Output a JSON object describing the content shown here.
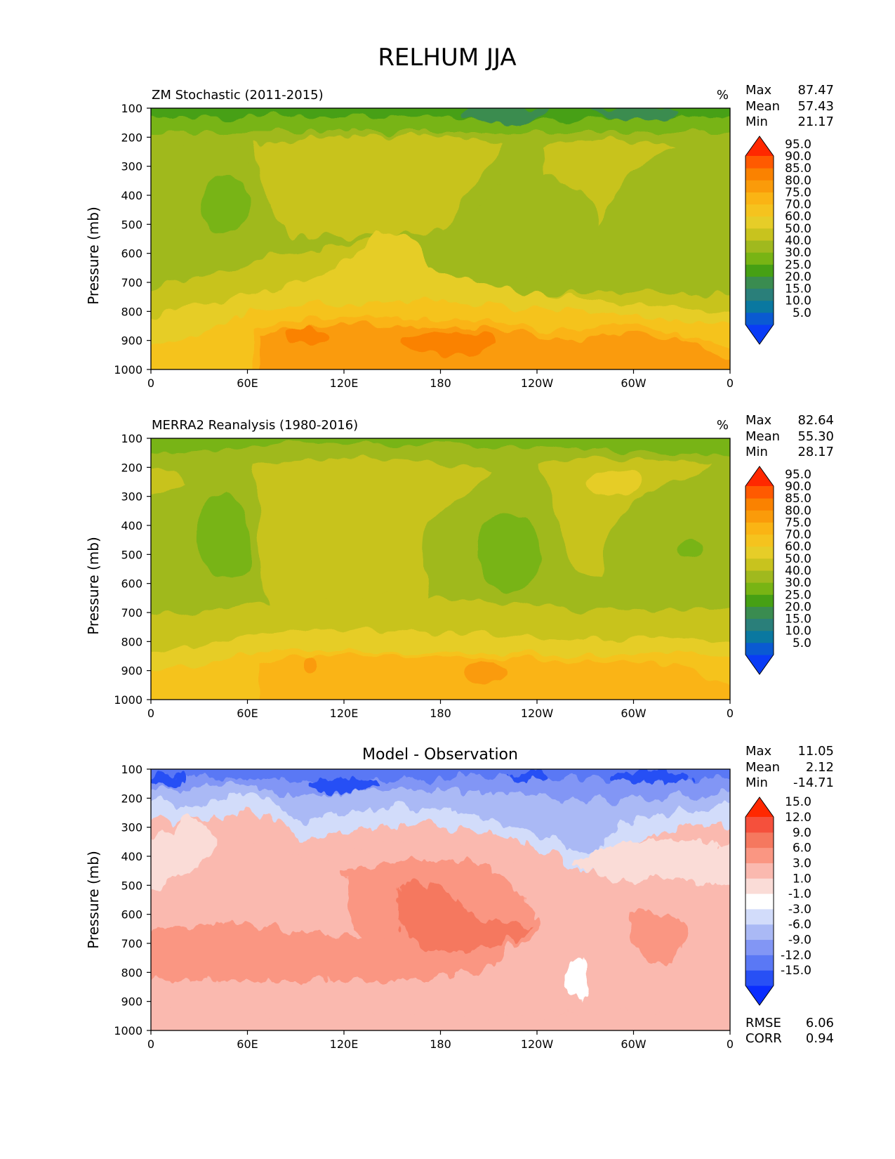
{
  "figure_title": "RELHUM JJA",
  "chart_data": [
    {
      "type": "contour",
      "title": "ZM Stochastic (2011-2015)",
      "units": "%",
      "ylabel": "Pressure (mb)",
      "xlabel": "",
      "x_ticks": [
        "0",
        "60E",
        "120E",
        "180",
        "120W",
        "60W",
        "0"
      ],
      "y_ticks": [
        "100",
        "200",
        "300",
        "400",
        "500",
        "600",
        "700",
        "800",
        "900",
        "1000"
      ],
      "ylim": [
        1000,
        100
      ],
      "stats": {
        "max_label": "Max",
        "max": "87.47",
        "mean_label": "Mean",
        "mean": "57.43",
        "min_label": "Min",
        "min": "21.17"
      },
      "levels": [
        "5.0",
        "10.0",
        "15.0",
        "20.0",
        "25.0",
        "30.0",
        "40.0",
        "50.0",
        "60.0",
        "70.0",
        "75.0",
        "80.0",
        "85.0",
        "90.0",
        "95.0"
      ],
      "colors": [
        "#0a3cf5",
        "#0a5ad2",
        "#0a78a0",
        "#2a7f7a",
        "#3a8c50",
        "#46a014",
        "#78b414",
        "#a0b91e",
        "#c8c31e",
        "#e6cd28",
        "#f5c31e",
        "#fab414",
        "#fa9b0a",
        "#fa8200",
        "#ff5a00",
        "#ff2800"
      ]
    },
    {
      "type": "contour",
      "title": "MERRA2 Reanalysis (1980-2016)",
      "units": "%",
      "ylabel": "Pressure (mb)",
      "xlabel": "",
      "x_ticks": [
        "0",
        "60E",
        "120E",
        "180",
        "120W",
        "60W",
        "0"
      ],
      "y_ticks": [
        "100",
        "200",
        "300",
        "400",
        "500",
        "600",
        "700",
        "800",
        "900",
        "1000"
      ],
      "ylim": [
        1000,
        100
      ],
      "stats": {
        "max_label": "Max",
        "max": "82.64",
        "mean_label": "Mean",
        "mean": "55.30",
        "min_label": "Min",
        "min": "28.17"
      },
      "levels": [
        "5.0",
        "10.0",
        "15.0",
        "20.0",
        "25.0",
        "30.0",
        "40.0",
        "50.0",
        "60.0",
        "70.0",
        "75.0",
        "80.0",
        "85.0",
        "90.0",
        "95.0"
      ],
      "colors": [
        "#0a3cf5",
        "#0a5ad2",
        "#0a78a0",
        "#2a7f7a",
        "#3a8c50",
        "#46a014",
        "#78b414",
        "#a0b91e",
        "#c8c31e",
        "#e6cd28",
        "#f5c31e",
        "#fab414",
        "#fa9b0a",
        "#fa8200",
        "#ff5a00",
        "#ff2800"
      ]
    },
    {
      "type": "contour",
      "title": "Model - Observation",
      "units": "",
      "ylabel": "Pressure (mb)",
      "xlabel": "",
      "x_ticks": [
        "0",
        "60E",
        "120E",
        "180",
        "120W",
        "60W",
        "0"
      ],
      "y_ticks": [
        "100",
        "200",
        "300",
        "400",
        "500",
        "600",
        "700",
        "800",
        "900",
        "1000"
      ],
      "ylim": [
        1000,
        100
      ],
      "stats": {
        "max_label": "Max",
        "max": "11.05",
        "mean_label": "Mean",
        "mean": "2.12",
        "min_label": "Min",
        "min": "-14.71"
      },
      "rmse_label": "RMSE",
      "rmse": "6.06",
      "corr_label": "CORR",
      "corr": "0.94",
      "levels": [
        "-15.0",
        "-12.0",
        "-9.0",
        "-6.0",
        "-3.0",
        "-1.0",
        "1.0",
        "3.0",
        "6.0",
        "9.0",
        "12.0",
        "15.0"
      ],
      "colors": [
        "#0a2dff",
        "#2850f5",
        "#5a78f5",
        "#8296f5",
        "#aab9f5",
        "#d2dcfa",
        "#ffffff",
        "#fadcd7",
        "#fab9af",
        "#fa9682",
        "#f5785f",
        "#f5503c",
        "#ff2800"
      ]
    }
  ]
}
